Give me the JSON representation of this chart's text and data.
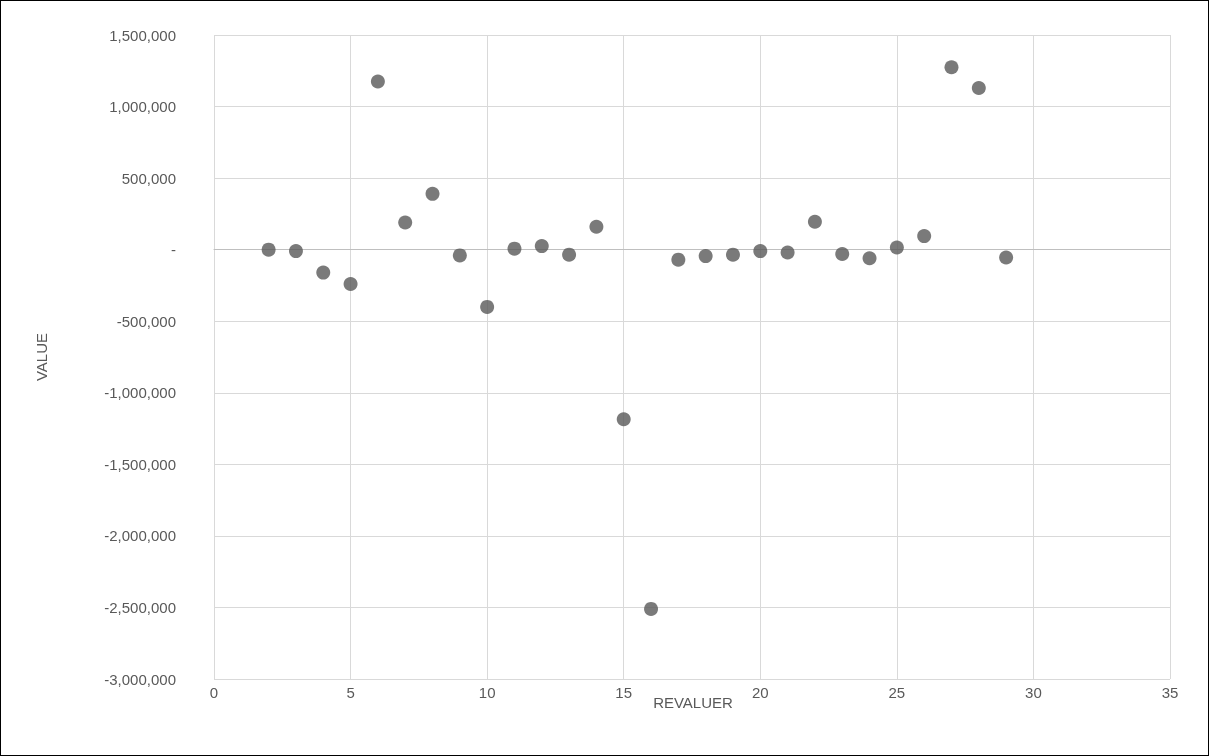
{
  "chart_data": {
    "type": "scatter",
    "xlabel": "REVALUER",
    "ylabel": "VALUE",
    "x": [
      2,
      3,
      4,
      5,
      6,
      7,
      8,
      9,
      10,
      11,
      12,
      13,
      14,
      15,
      16,
      17,
      18,
      19,
      20,
      21,
      22,
      23,
      24,
      25,
      26,
      27,
      28,
      29
    ],
    "values": [
      0,
      -10000,
      -160000,
      -240000,
      1175000,
      190000,
      390000,
      -40000,
      -400000,
      7000,
      25000,
      -35000,
      160000,
      -1185000,
      -2510000,
      -70000,
      -45000,
      -35000,
      -10000,
      -20000,
      195000,
      -30000,
      -60000,
      15000,
      95000,
      1275000,
      1130000,
      -55000
    ],
    "color": "#595959",
    "marker": "circle",
    "grid": true,
    "xlim": [
      0,
      35
    ],
    "xticks": [
      0,
      5,
      10,
      15,
      20,
      25,
      30,
      35
    ],
    "ylim": [
      -3000000,
      1500000
    ],
    "yticks": [
      {
        "value": -3000000,
        "label": "-3,000,000"
      },
      {
        "value": -2500000,
        "label": "-2,500,000"
      },
      {
        "value": -2000000,
        "label": "-2,000,000"
      },
      {
        "value": -1500000,
        "label": "-1,500,000"
      },
      {
        "value": -1000000,
        "label": "-1,000,000"
      },
      {
        "value": -500000,
        "label": "-500,000"
      },
      {
        "value": 0,
        "label": "-"
      },
      {
        "value": 500000,
        "label": "500,000"
      },
      {
        "value": 1000000,
        "label": "1,000,000"
      },
      {
        "value": 1500000,
        "label": "1,500,000"
      }
    ]
  }
}
